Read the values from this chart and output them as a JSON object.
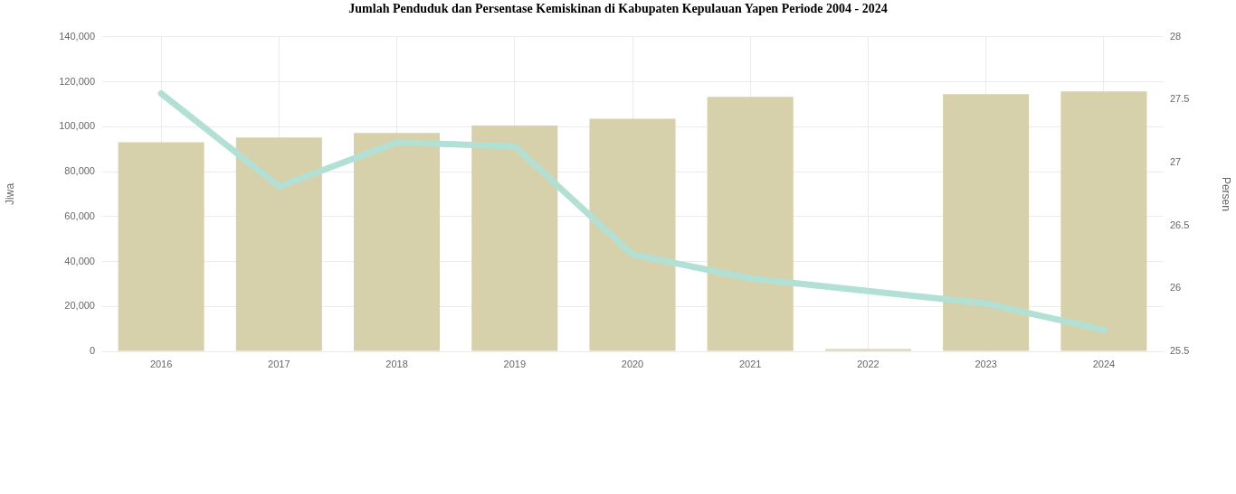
{
  "chart_data": {
    "type": "bar",
    "title": "Jumlah Penduduk dan Persentase Kemiskinan di Kabupaten Kepulauan Yapen Periode 2004 - 2024",
    "ylabel": "Jiwa",
    "y2label": "Persen",
    "categories": [
      "2016",
      "2017",
      "2018",
      "2019",
      "2020",
      "2021",
      "2022",
      "2023",
      "2024"
    ],
    "series": [
      {
        "color": "#d6d0ab",
        "values": [
          93100,
          95200,
          97200,
          100500,
          103500,
          113300,
          1000,
          114500,
          115700
        ]
      },
      {
        "type": "line",
        "axis": "y2",
        "color": "#b2e0d5",
        "values": [
          27.55,
          26.81,
          27.16,
          27.13,
          26.27,
          26.08,
          25.98,
          25.88,
          25.67
        ]
      }
    ],
    "ylim": [
      0,
      140000
    ],
    "yticks": [
      0,
      {
        "value": 20000,
        "label": "20,000"
      },
      {
        "value": 40000,
        "label": "40,000"
      },
      {
        "value": 60000,
        "label": "60,000"
      },
      {
        "value": 80000,
        "label": "80,000"
      },
      {
        "value": 100000,
        "label": "100,000"
      },
      {
        "value": 120000,
        "label": "120,000"
      },
      {
        "value": 140000,
        "label": "140,000"
      }
    ],
    "y2lim": [
      25.5,
      28
    ],
    "y2ticks": [
      25.5,
      26,
      26.5,
      27,
      27.5,
      28
    ],
    "grid": true,
    "legend": false,
    "marker": "none",
    "line_style": "solid"
  }
}
